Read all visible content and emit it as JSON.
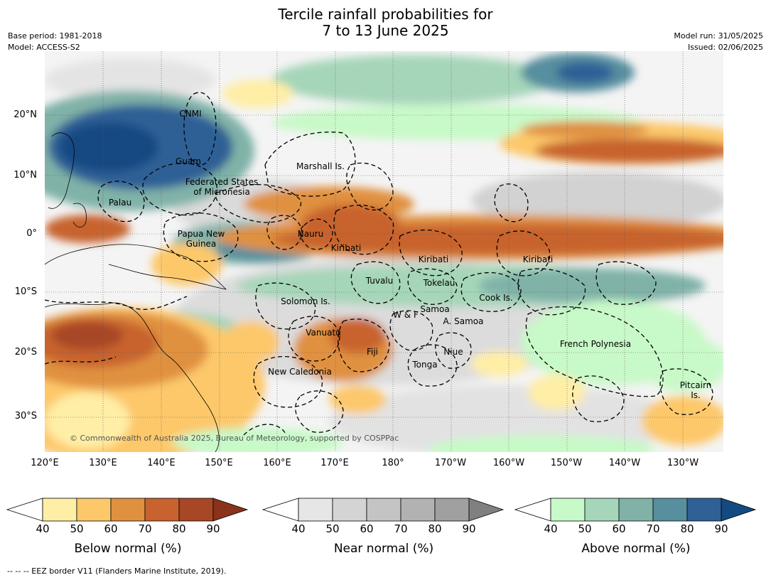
{
  "header": {
    "title_line1": "Tercile rainfall probabilities for",
    "title_line2": "7 to 13 June 2025",
    "base_period": "Base period: 1981-2018",
    "model": "Model: ACCESS-S2",
    "model_run": "Model run: 31/05/2025",
    "issued": "Issued: 02/06/2025"
  },
  "axes": {
    "lat_labels": [
      "20°N",
      "10°N",
      "0°",
      "10°S",
      "20°S",
      "30°S"
    ],
    "lon_labels": [
      "120°E",
      "130°E",
      "140°E",
      "150°E",
      "160°E",
      "170°E",
      "180°",
      "170°W",
      "160°W",
      "150°W",
      "140°W",
      "130°W"
    ]
  },
  "regions": [
    "CNMI",
    "Guam",
    "Marshall Is.",
    "Federated States\nof Micronesia",
    "Palau",
    "Papua New\nGuinea",
    "Nauru",
    "Kiribati",
    "Kiribati",
    "Kiribati",
    "Tuvalu",
    "Tokelau",
    "Cook Is.",
    "Solomon Is.",
    "W & F",
    "Samoa",
    "A. Samoa",
    "Vanuatu",
    "Fiji",
    "Niue",
    "Tonga",
    "French Polynesia",
    "New Caledonia",
    "Pitcairn\nIs."
  ],
  "copyright": "© Commonwealth of Australia 2025, Bureau of Meteorology, supported by COSPPac",
  "legends": [
    {
      "label": "Below normal (%)",
      "ticks": [
        "40",
        "50",
        "60",
        "70",
        "80",
        "90"
      ],
      "colors": [
        "#ffeea6",
        "#fdc86a",
        "#e0913f",
        "#c8632f",
        "#a84725",
        "#8a321c"
      ]
    },
    {
      "label": "Near normal (%)",
      "ticks": [
        "40",
        "50",
        "60",
        "70",
        "80",
        "90"
      ],
      "colors": [
        "#e6e6e6",
        "#d4d4d4",
        "#c4c4c4",
        "#b2b2b2",
        "#a0a0a0",
        "#808080"
      ]
    },
    {
      "label": "Above normal (%)",
      "ticks": [
        "40",
        "50",
        "60",
        "70",
        "80",
        "90"
      ],
      "colors": [
        "#c8f9c8",
        "#a6d6b9",
        "#80b2a8",
        "#578f9f",
        "#2f6196",
        "#134a82"
      ]
    }
  ],
  "footnote": "--  --  -- EEZ border V11 (Flanders Marine Institute, 2019)."
}
